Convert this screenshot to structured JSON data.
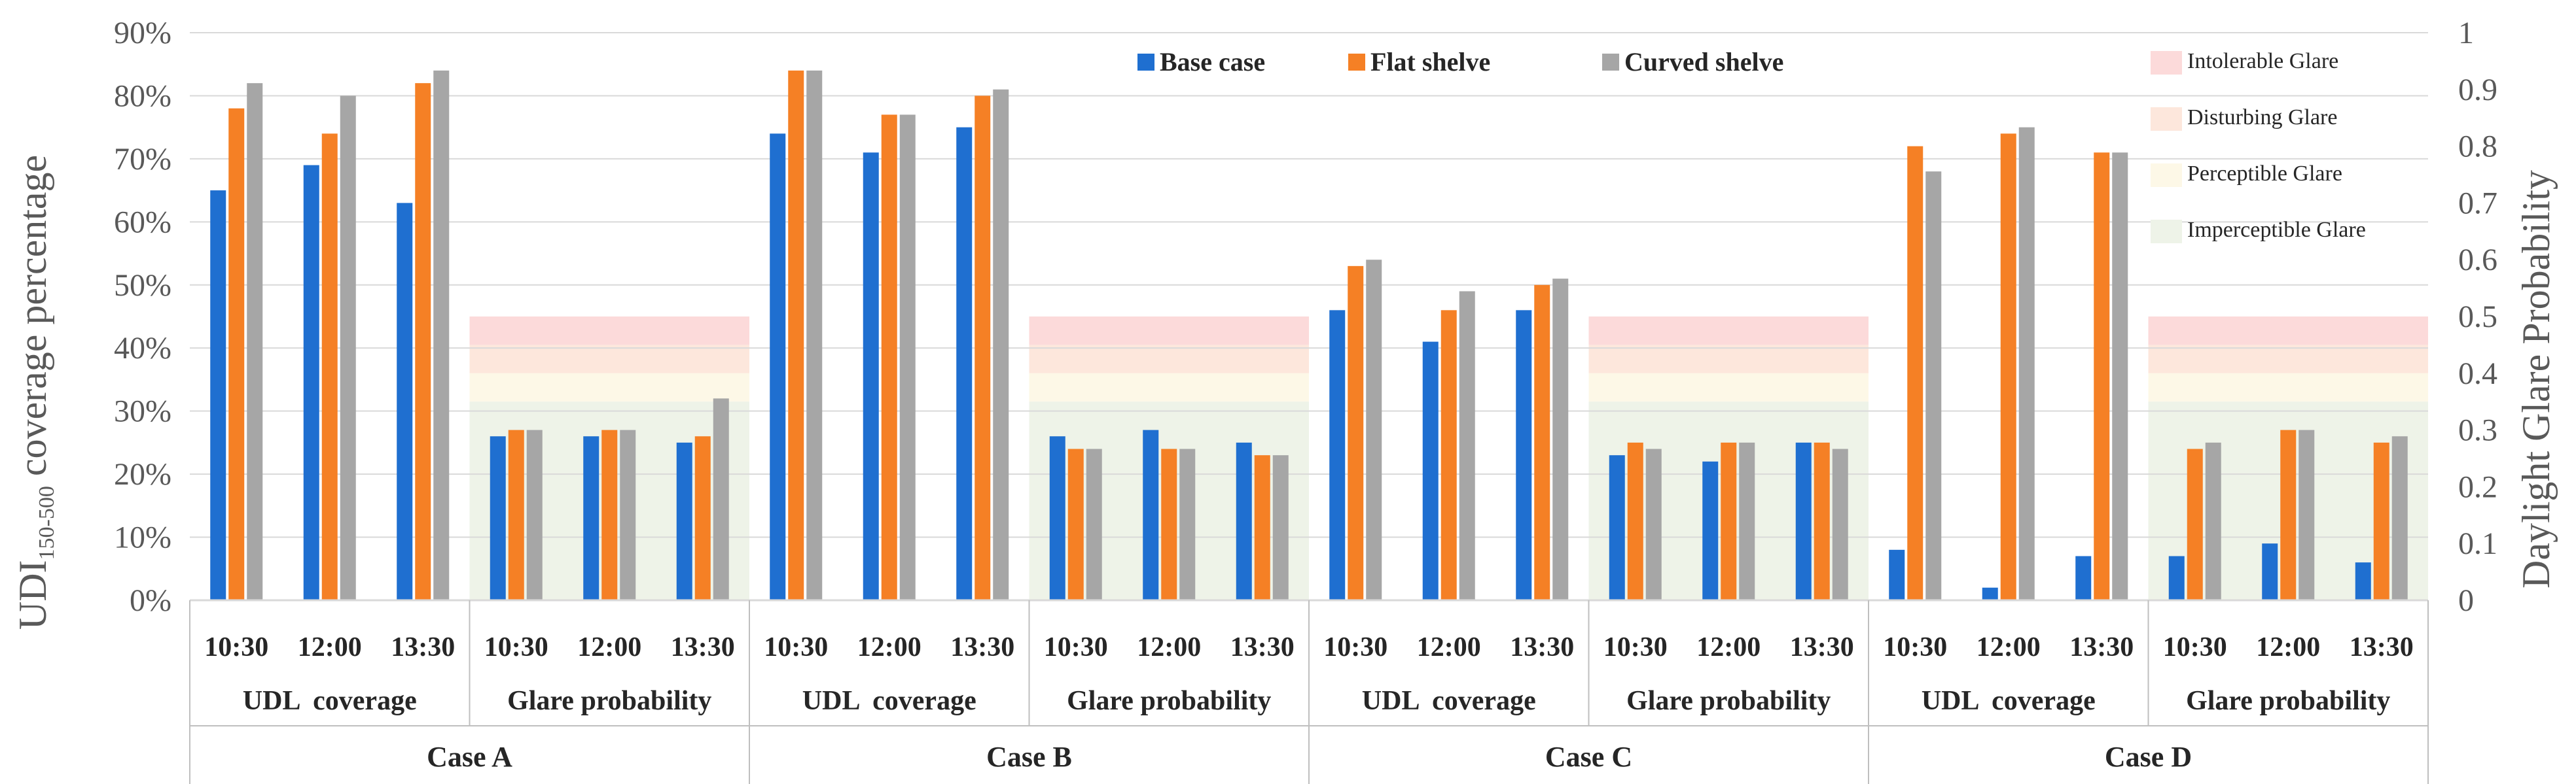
{
  "colors": {
    "base": "#1F6FD0",
    "flat": "#F58025",
    "curved": "#A6A6A6",
    "intolerable": "#FCDADA",
    "disturbing": "#FDE7DC",
    "perceptible": "#FDF8E7",
    "imperceptible": "#EEF3E8",
    "grid": "#D9D9D9",
    "text": "#595959"
  },
  "chart_data": {
    "type": "bar",
    "title": "",
    "ylabel_left": {
      "prefix": "UDI",
      "subscript": "150-500",
      "suffix": " coverage percentage"
    },
    "ylabel_right": "Daylight Glare Probability",
    "ylim_left": [
      0,
      90
    ],
    "ylim_right": [
      0,
      1
    ],
    "left_ticks": [
      "0%",
      "10%",
      "20%",
      "30%",
      "40%",
      "50%",
      "60%",
      "70%",
      "80%",
      "90%"
    ],
    "right_ticks": [
      "0",
      "0.1",
      "0.2",
      "0.3",
      "0.4",
      "0.5",
      "0.6",
      "0.7",
      "0.8",
      "0.9",
      "1"
    ],
    "legend": [
      "Base case",
      "Flat shelve",
      "Curved shelve"
    ],
    "glare_zones": [
      {
        "label": "Intolerable Glare",
        "from": 0.45,
        "to": 0.5
      },
      {
        "label": "Disturbing Glare",
        "from": 0.4,
        "to": 0.45
      },
      {
        "label": "Perceptible Glare",
        "from": 0.35,
        "to": 0.4
      },
      {
        "label": "Imperceptible Glare",
        "from": 0,
        "to": 0.35
      }
    ],
    "cases": [
      {
        "name": "Case A",
        "groups": [
          {
            "name": "UDL  coverage",
            "categories": [
              "10:30",
              "12:00",
              "13:30"
            ],
            "series": [
              {
                "name": "Base case",
                "values": [
                  65,
                  69,
                  63
                ]
              },
              {
                "name": "Flat shelve",
                "values": [
                  78,
                  74,
                  82
                ]
              },
              {
                "name": "Curved shelve",
                "values": [
                  82,
                  80,
                  84
                ]
              }
            ]
          },
          {
            "name": "Glare probability",
            "categories": [
              "10:30",
              "12:00",
              "13:30"
            ],
            "series": [
              {
                "name": "Base case",
                "values": [
                  26,
                  26,
                  25
                ]
              },
              {
                "name": "Flat shelve",
                "values": [
                  27,
                  27,
                  26
                ]
              },
              {
                "name": "Curved shelve",
                "values": [
                  27,
                  27,
                  32
                ]
              }
            ]
          }
        ]
      },
      {
        "name": "Case B",
        "groups": [
          {
            "name": "UDL  coverage",
            "categories": [
              "10:30",
              "12:00",
              "13:30"
            ],
            "series": [
              {
                "name": "Base case",
                "values": [
                  74,
                  71,
                  75
                ]
              },
              {
                "name": "Flat shelve",
                "values": [
                  84,
                  77,
                  80
                ]
              },
              {
                "name": "Curved shelve",
                "values": [
                  84,
                  77,
                  81
                ]
              }
            ]
          },
          {
            "name": "Glare probability",
            "categories": [
              "10:30",
              "12:00",
              "13:30"
            ],
            "series": [
              {
                "name": "Base case",
                "values": [
                  26,
                  27,
                  25
                ]
              },
              {
                "name": "Flat shelve",
                "values": [
                  24,
                  24,
                  23
                ]
              },
              {
                "name": "Curved shelve",
                "values": [
                  24,
                  24,
                  23
                ]
              }
            ]
          }
        ]
      },
      {
        "name": "Case C",
        "groups": [
          {
            "name": "UDL  coverage",
            "categories": [
              "10:30",
              "12:00",
              "13:30"
            ],
            "series": [
              {
                "name": "Base case",
                "values": [
                  46,
                  41,
                  46
                ]
              },
              {
                "name": "Flat shelve",
                "values": [
                  53,
                  46,
                  50
                ]
              },
              {
                "name": "Curved shelve",
                "values": [
                  54,
                  49,
                  51
                ]
              }
            ]
          },
          {
            "name": "Glare probability",
            "categories": [
              "10:30",
              "12:00",
              "13:30"
            ],
            "series": [
              {
                "name": "Base case",
                "values": [
                  23,
                  22,
                  25
                ]
              },
              {
                "name": "Flat shelve",
                "values": [
                  25,
                  25,
                  25
                ]
              },
              {
                "name": "Curved shelve",
                "values": [
                  24,
                  25,
                  24
                ]
              }
            ]
          }
        ]
      },
      {
        "name": "Case D",
        "groups": [
          {
            "name": "UDL  coverage",
            "categories": [
              "10:30",
              "12:00",
              "13:30"
            ],
            "series": [
              {
                "name": "Base case",
                "values": [
                  8,
                  2,
                  7
                ]
              },
              {
                "name": "Flat shelve",
                "values": [
                  72,
                  74,
                  71
                ]
              },
              {
                "name": "Curved shelve",
                "values": [
                  68,
                  75,
                  71
                ]
              }
            ]
          },
          {
            "name": "Glare probability",
            "categories": [
              "10:30",
              "12:00",
              "13:30"
            ],
            "series": [
              {
                "name": "Base case",
                "values": [
                  7,
                  9,
                  6
                ]
              },
              {
                "name": "Flat shelve",
                "values": [
                  24,
                  27,
                  25
                ]
              },
              {
                "name": "Curved shelve",
                "values": [
                  25,
                  27,
                  26
                ]
              }
            ]
          }
        ]
      }
    ]
  }
}
